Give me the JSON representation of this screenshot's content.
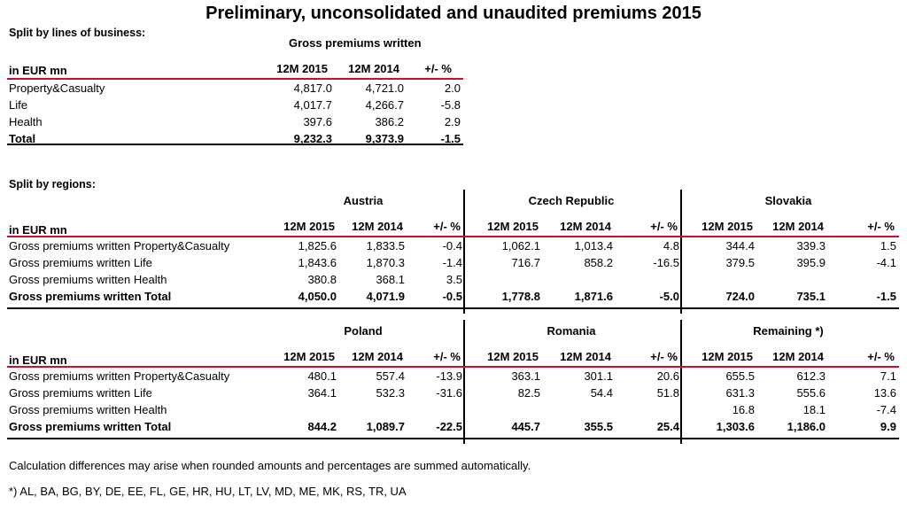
{
  "title": "Preliminary, unconsolidated and unaudited premiums 2015",
  "lob": {
    "section_label": "Split by lines of business:",
    "group_header": "Gross premiums written",
    "unit": "in EUR mn",
    "cols": [
      "12M 2015",
      "12M 2014",
      "+/- %"
    ],
    "rows": [
      {
        "label": "Property&Casualty",
        "v": [
          "4,817.0",
          "4,721.0",
          "2.0"
        ]
      },
      {
        "label": "Life",
        "v": [
          "4,017.7",
          "4,266.7",
          "-5.8"
        ]
      },
      {
        "label": "Health",
        "v": [
          "397.6",
          "386.2",
          "2.9"
        ]
      },
      {
        "label": "Total",
        "v": [
          "9,232.3",
          "9,373.9",
          "-1.5"
        ]
      }
    ]
  },
  "regions_label": "Split by regions:",
  "reg1": {
    "unit": "in EUR mn",
    "groups": [
      "Austria",
      "Czech Republic",
      "Slovakia"
    ],
    "cols": [
      "12M 2015",
      "12M 2014",
      "+/- %"
    ],
    "rows": [
      {
        "label": "Gross premiums written Property&Casualty",
        "v": [
          "1,825.6",
          "1,833.5",
          "-0.4",
          "1,062.1",
          "1,013.4",
          "4.8",
          "344.4",
          "339.3",
          "1.5"
        ]
      },
      {
        "label": "Gross premiums written Life",
        "v": [
          "1,843.6",
          "1,870.3",
          "-1.4",
          "716.7",
          "858.2",
          "-16.5",
          "379.5",
          "395.9",
          "-4.1"
        ]
      },
      {
        "label": "Gross premiums written Health",
        "v": [
          "380.8",
          "368.1",
          "3.5",
          "",
          "",
          "",
          "",
          "",
          ""
        ]
      },
      {
        "label": "Gross premiums written Total",
        "v": [
          "4,050.0",
          "4,071.9",
          "-0.5",
          "1,778.8",
          "1,871.6",
          "-5.0",
          "724.0",
          "735.1",
          "-1.5"
        ]
      }
    ]
  },
  "reg2": {
    "unit": "in EUR mn",
    "groups": [
      "Poland",
      "Romania",
      "Remaining *)"
    ],
    "cols": [
      "12M 2015",
      "12M 2014",
      "+/- %"
    ],
    "rows": [
      {
        "label": "Gross premiums written Property&Casualty",
        "v": [
          "480.1",
          "557.4",
          "-13.9",
          "363.1",
          "301.1",
          "20.6",
          "655.5",
          "612.3",
          "7.1"
        ]
      },
      {
        "label": "Gross premiums written Life",
        "v": [
          "364.1",
          "532.3",
          "-31.6",
          "82.5",
          "54.4",
          "51.8",
          "631.3",
          "555.6",
          "13.6"
        ]
      },
      {
        "label": "Gross premiums written Health",
        "v": [
          "",
          "",
          "",
          "",
          "",
          "",
          "16.8",
          "18.1",
          "-7.4"
        ]
      },
      {
        "label": "Gross premiums written Total",
        "v": [
          "844.2",
          "1,089.7",
          "-22.5",
          "445.7",
          "355.5",
          "25.4",
          "1,303.6",
          "1,186.0",
          "9.9"
        ]
      }
    ]
  },
  "footnote1": "Calculation differences may arise when rounded amounts and percentages are summed automatically.",
  "footnote2": "*) AL, BA, BG, BY, DE, EE, FL, GE, HR, HU, LT, LV, MD, ME, MK, RS, TR, UA"
}
